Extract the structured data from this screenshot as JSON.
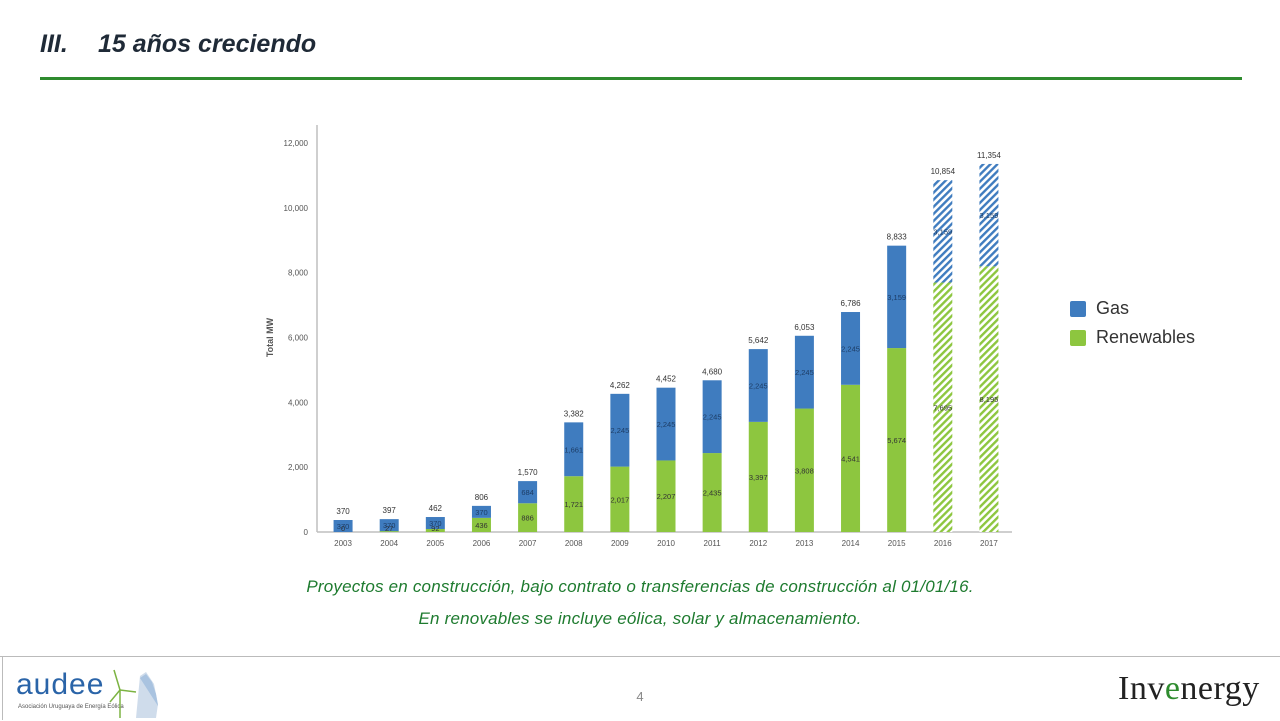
{
  "header": {
    "section_number": "III.",
    "title": "15 años creciendo"
  },
  "chart_data": {
    "type": "bar",
    "stacked": true,
    "categories": [
      "2003",
      "2004",
      "2005",
      "2006",
      "2007",
      "2008",
      "2009",
      "2010",
      "2011",
      "2012",
      "2013",
      "2014",
      "2015",
      "2016",
      "2017"
    ],
    "series": [
      {
        "name": "Renewables",
        "color": "#8dc63f",
        "values": [
          0,
          27,
          92,
          436,
          886,
          1721,
          2017,
          2207,
          2435,
          3397,
          3808,
          4541,
          5674,
          7695,
          8195
        ],
        "labels": [
          "0",
          "27",
          "92",
          "436",
          "886",
          "1,721",
          "2,017",
          "2,207",
          "2,435",
          "3,397",
          "3,808",
          "4,541",
          "5,674",
          "7,695",
          "8,195"
        ]
      },
      {
        "name": "Gas",
        "color": "#3f7cbf",
        "values": [
          370,
          370,
          370,
          370,
          684,
          1661,
          2245,
          2245,
          2245,
          2245,
          2245,
          2245,
          3159,
          3159,
          3159
        ],
        "labels": [
          "370",
          "370",
          "370",
          "370",
          "684",
          "1,661",
          "2,245",
          "2,245",
          "2,245",
          "2,245",
          "2,245",
          "2,245",
          "3,159",
          "3,159",
          "3,159"
        ]
      }
    ],
    "totals": [
      "370",
      "397",
      "462",
      "806",
      "1,570",
      "3,382",
      "4,262",
      "4,452",
      "4,680",
      "5,642",
      "6,053",
      "6,786",
      "8,833",
      "10,854",
      "11,354"
    ],
    "hatched_categories": [
      "2016",
      "2017"
    ],
    "ylabel": "Total MW",
    "ylim": [
      0,
      12000
    ],
    "yticks": [
      "0",
      "2,000",
      "4,000",
      "6,000",
      "8,000",
      "10,000",
      "12,000"
    ],
    "legend_position": "right",
    "grid": false
  },
  "legend": {
    "gas_label": "Gas",
    "renewables_label": "Renewables",
    "gas_color": "#3f7cbf",
    "renewables_color": "#8dc63f"
  },
  "caption": {
    "line1": "Proyectos en construcción, bajo contrato o transferencias de construcción al 01/01/16.",
    "line2": "En renovables se incluye eólica, solar y almacenamiento."
  },
  "footer": {
    "page_number": "4",
    "left_logo_text": "audee",
    "left_logo_subtitle": "Asociación Uruguaya de Energía Eólica",
    "right_logo_text_a": "Inv",
    "right_logo_text_b": "e",
    "right_logo_text_c": "nergy"
  }
}
